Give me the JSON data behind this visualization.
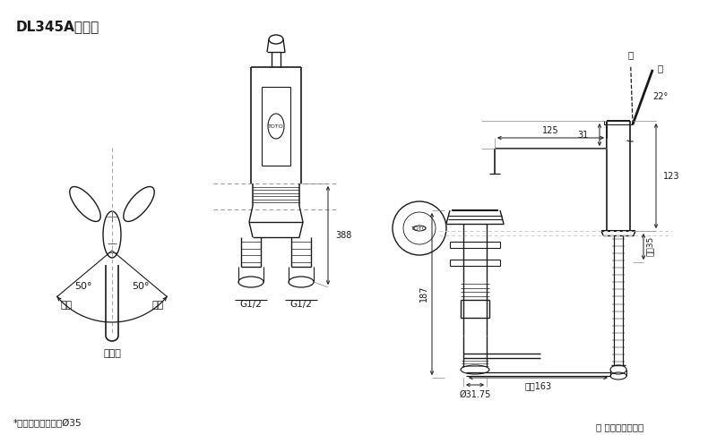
{
  "title": "DL345A尺寸图",
  "bg_color": "#ffffff",
  "line_color": "#1a1a1a",
  "footnote": "*水嘴安装孔尺寸为Ø35",
  "footnote2": "（ ）建议安装尺寸",
  "labels": {
    "hot": "热水",
    "cold": "冷水",
    "mixed": "混合水",
    "angle_left": "50°",
    "angle_right": "50°",
    "g12_left": "G1/2",
    "g12_right": "G1/2",
    "dim_388": "388",
    "dim_187": "187",
    "dim_125": "125",
    "dim_123": "123",
    "dim_31": "31",
    "dim_35": "最大35",
    "dim_163": "最大163",
    "dim_3175": "Ø31.75",
    "dim_22": "22°",
    "open": "开",
    "close": "关",
    "toto": "TOTO"
  }
}
